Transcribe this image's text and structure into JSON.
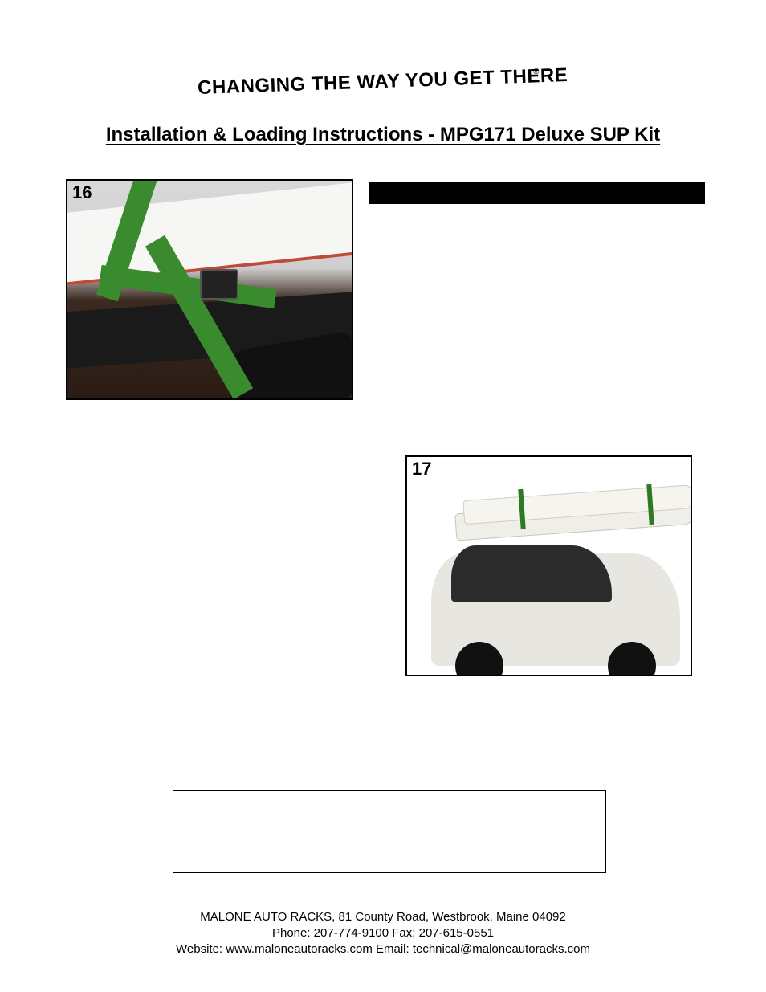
{
  "tagline": "CHANGING THE WAY YOU GET THERE",
  "reg_mark": "®",
  "title": "Installation & Loading Instructions - MPG171 Deluxe SUP Kit",
  "figures": {
    "fig16": {
      "number": "16",
      "alt": "Close-up of green cam strap and buckle securing SUP board to black cross bar"
    },
    "fig17": {
      "number": "17",
      "alt": "White SUV with two stand-up paddleboards strapped to roof rack"
    }
  },
  "footer": {
    "line1": "MALONE AUTO RACKS, 81 County Road, Westbrook, Maine 04092",
    "line2": "Phone:  207-774-9100   Fax:  207-615-0551",
    "line3": "Website:  www.maloneautoracks.com   Email:  technical@maloneautoracks.com"
  },
  "colors": {
    "strap_green": "#3a8a2e",
    "board_white": "#f6f6f4",
    "board_trim": "#c04a3a",
    "bar_black": "#1a1a1a",
    "car_body": "#e8e6e0",
    "car_glass": "#2b2b2b",
    "text": "#000000",
    "page_bg": "#ffffff"
  }
}
